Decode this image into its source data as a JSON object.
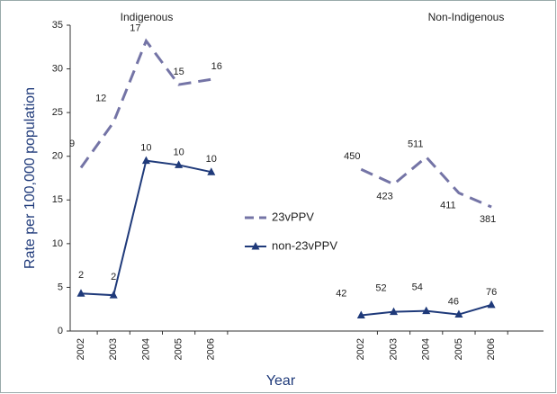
{
  "chart_data": {
    "type": "line",
    "y_label": "Rate per 100,000 population",
    "x_label": "Year",
    "annotations": [
      "Indigenous",
      "Non-Indigenous"
    ],
    "categories": [
      "2002",
      "2003",
      "2004",
      "2005",
      "2006",
      null,
      "2002",
      "2003",
      "2004",
      "2005",
      "2006"
    ],
    "series": [
      {
        "name": "23vPPV",
        "color": "#7474a6",
        "dashed": true,
        "values": [
          18.7,
          23.9,
          33.2,
          28.2,
          28.8,
          null,
          18.5,
          16.8,
          19.9,
          15.8,
          14.2
        ],
        "case_counts": [
          9,
          12,
          17,
          15,
          16,
          null,
          450,
          423,
          511,
          411,
          381
        ]
      },
      {
        "name": "non-23vPPV",
        "color": "#1f3a7a",
        "dashed": false,
        "marker": "triangle",
        "values": [
          4.3,
          4.1,
          19.5,
          19.0,
          18.2,
          null,
          1.8,
          2.2,
          2.3,
          1.9,
          3.0
        ],
        "case_counts": [
          2,
          2,
          10,
          10,
          10,
          null,
          42,
          52,
          54,
          46,
          76
        ]
      }
    ],
    "ylim": [
      0,
      35
    ],
    "yticks": [
      0,
      5,
      10,
      15,
      20,
      25,
      30,
      35
    ],
    "legend": "center"
  }
}
